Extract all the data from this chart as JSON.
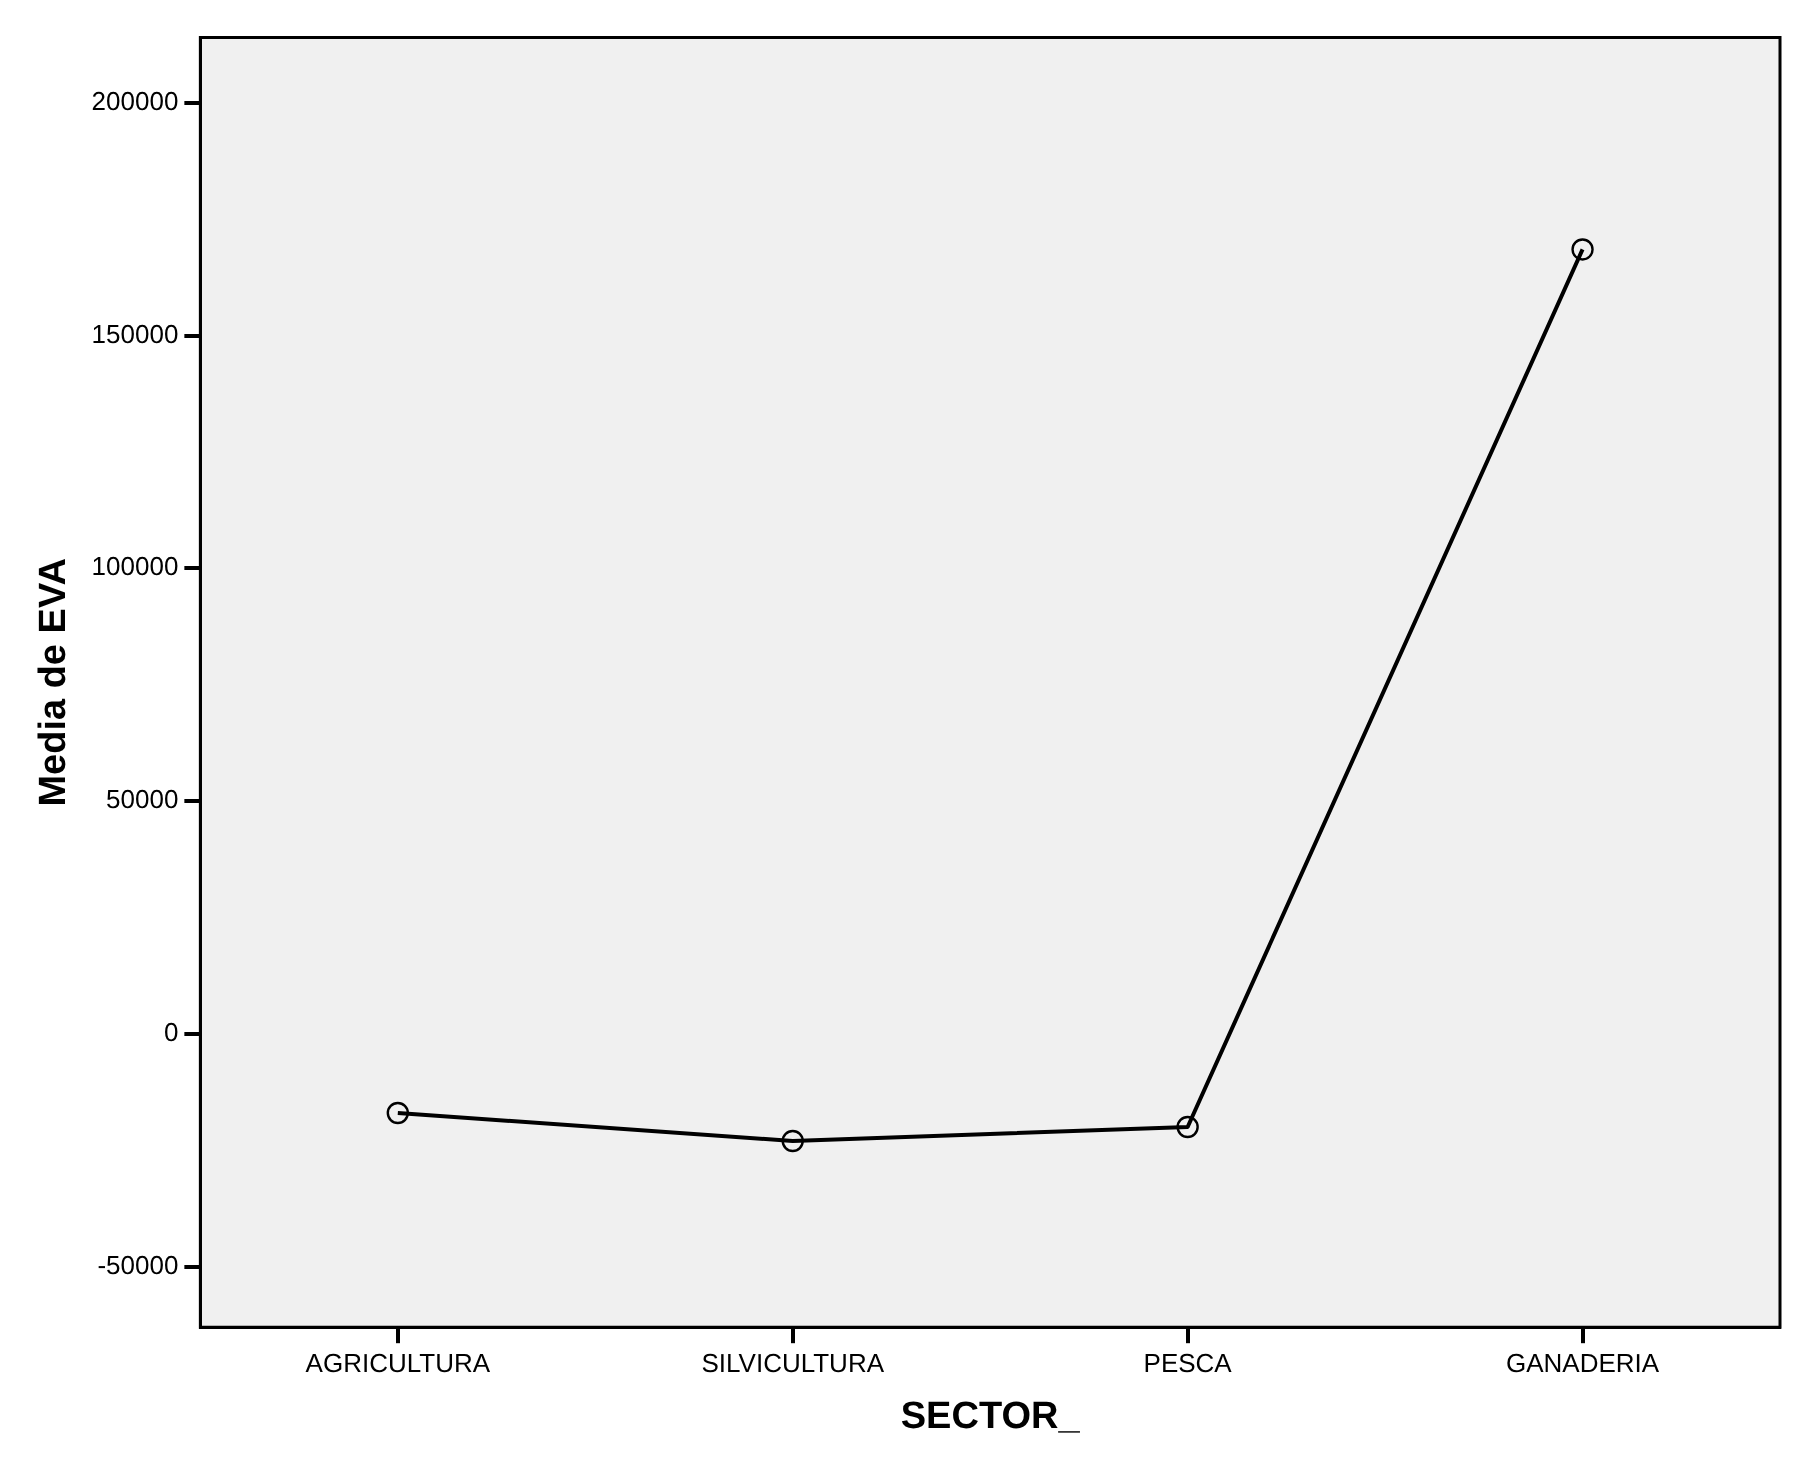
{
  "chart_data": {
    "type": "line",
    "xlabel": "SECTOR_",
    "ylabel": "Media de EVA",
    "categories": [
      "AGRICULTURA",
      "SILVICULTURA",
      "PESCA",
      "GANADERIA"
    ],
    "series": [
      {
        "color": "#000000",
        "values": [
          -17000,
          -23000,
          -20000,
          168500
        ]
      }
    ],
    "ylim": [
      -63000,
      214000
    ],
    "yticks": [
      -50000,
      0,
      50000,
      100000,
      150000,
      200000
    ],
    "grid": false,
    "legend": false,
    "marker": "circle",
    "line_style": "solid"
  }
}
